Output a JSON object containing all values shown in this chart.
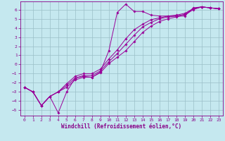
{
  "xlabel": "Windchill (Refroidissement éolien,°C)",
  "xlim": [
    -0.5,
    23.5
  ],
  "ylim": [
    -5.6,
    6.9
  ],
  "xticks": [
    0,
    1,
    2,
    3,
    4,
    5,
    6,
    7,
    8,
    9,
    10,
    11,
    12,
    13,
    14,
    15,
    16,
    17,
    18,
    19,
    20,
    21,
    22,
    23
  ],
  "yticks": [
    -5,
    -4,
    -3,
    -2,
    -1,
    0,
    1,
    2,
    3,
    4,
    5,
    6
  ],
  "bg_color": "#c5e8ef",
  "grid_color": "#9bbfc8",
  "line_color": "#990099",
  "lines": [
    {
      "x": [
        0,
        1,
        2,
        3,
        4,
        5,
        6,
        7,
        8,
        9,
        10,
        11,
        12,
        13,
        14,
        15,
        16,
        17,
        18,
        19,
        20,
        21,
        22,
        23
      ],
      "y": [
        -2.5,
        -3.0,
        -4.5,
        -3.5,
        -5.3,
        -3.0,
        -1.5,
        -1.3,
        -1.4,
        -0.8,
        1.5,
        5.7,
        6.6,
        5.8,
        5.8,
        5.4,
        5.3,
        5.3,
        5.3,
        5.3,
        6.2,
        6.3,
        6.2,
        6.1
      ]
    },
    {
      "x": [
        0,
        1,
        2,
        3,
        4,
        5,
        6,
        7,
        8,
        9,
        10,
        11,
        12,
        13,
        14,
        15,
        16,
        17,
        18,
        19,
        20,
        21,
        22,
        23
      ],
      "y": [
        -2.5,
        -3.0,
        -4.5,
        -3.5,
        -3.0,
        -2.5,
        -1.7,
        -1.4,
        -1.4,
        -0.9,
        0.1,
        0.8,
        1.5,
        2.5,
        3.5,
        4.2,
        4.7,
        5.0,
        5.2,
        5.4,
        6.0,
        6.3,
        6.2,
        6.1
      ]
    },
    {
      "x": [
        0,
        1,
        2,
        3,
        4,
        5,
        6,
        7,
        8,
        9,
        10,
        11,
        12,
        13,
        14,
        15,
        16,
        17,
        18,
        19,
        20,
        21,
        22,
        23
      ],
      "y": [
        -2.5,
        -3.0,
        -4.5,
        -3.5,
        -3.0,
        -2.3,
        -1.5,
        -1.2,
        -1.2,
        -0.7,
        0.3,
        1.2,
        2.2,
        3.2,
        4.1,
        4.6,
        5.0,
        5.2,
        5.3,
        5.5,
        6.1,
        6.3,
        6.2,
        6.1
      ]
    },
    {
      "x": [
        0,
        1,
        2,
        3,
        4,
        5,
        6,
        7,
        8,
        9,
        10,
        11,
        12,
        13,
        14,
        15,
        16,
        17,
        18,
        19,
        20,
        21,
        22,
        23
      ],
      "y": [
        -2.5,
        -3.0,
        -4.5,
        -3.5,
        -3.0,
        -2.1,
        -1.3,
        -1.0,
        -1.0,
        -0.5,
        0.6,
        1.6,
        2.8,
        3.8,
        4.4,
        4.9,
        5.1,
        5.3,
        5.4,
        5.6,
        6.1,
        6.3,
        6.2,
        6.1
      ]
    }
  ],
  "marker": "D",
  "marker_size": 1.8,
  "line_width": 0.7,
  "font_color": "#880088",
  "tick_fontsize": 4.5,
  "label_fontsize": 5.5
}
